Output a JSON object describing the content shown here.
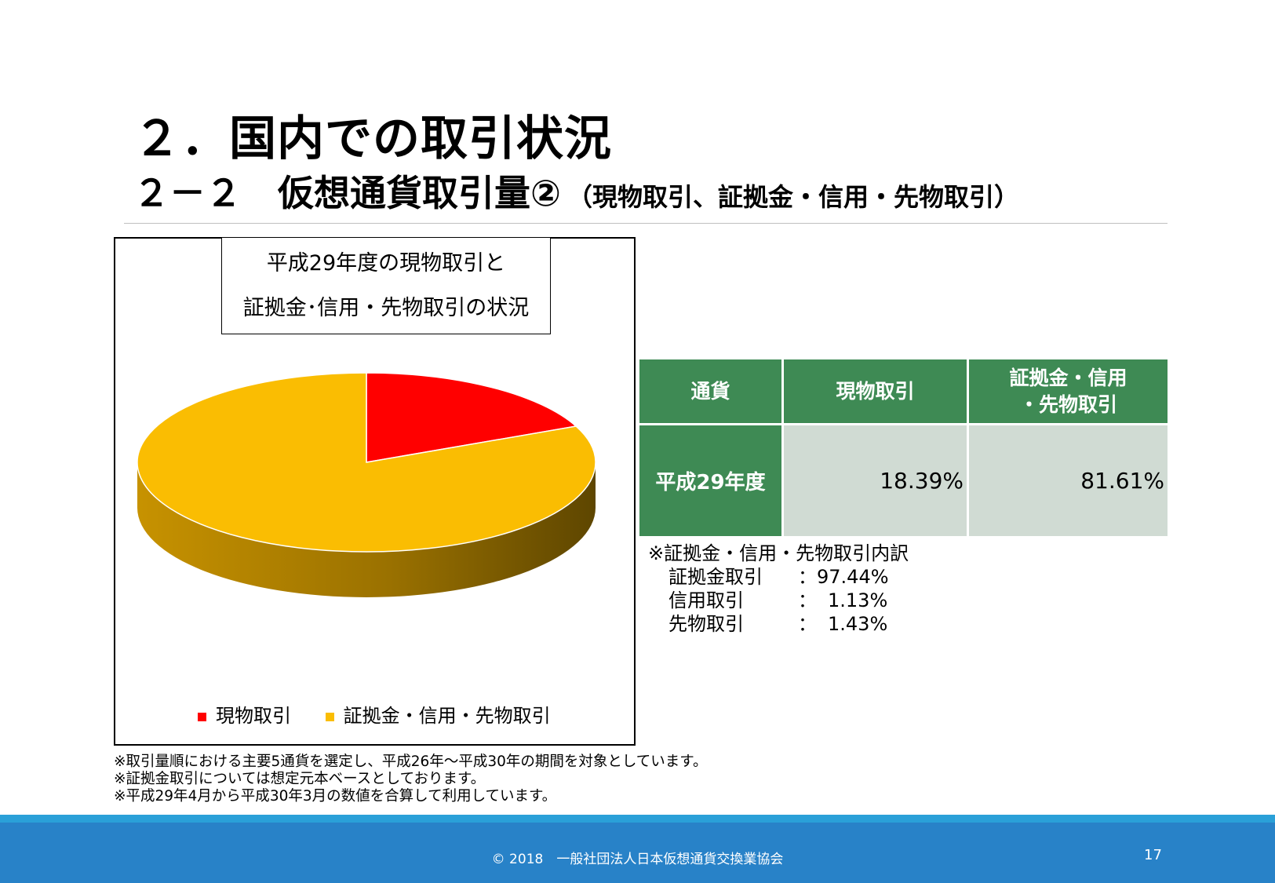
{
  "header": {
    "title_main": "２．国内での取引状況",
    "title_section": "２－２　仮想通貨取引量②",
    "title_sub": "（現物取引、証拠金・信用・先物取引）"
  },
  "chart_title": {
    "line1": "平成29年度の現物取引と",
    "line2": "証拠金･信用・先物取引の状況"
  },
  "chart_data": {
    "type": "pie",
    "style": "3d",
    "title": "平成29年度の現物取引と 証拠金･信用・先物取引の状況",
    "slices": [
      {
        "label": "現物取引",
        "value": 18.39,
        "color": "#ff0000",
        "side_color": "#a00000"
      },
      {
        "label": "証拠金・信用・先物取引",
        "value": 81.61,
        "color": "#fabd02",
        "side_color": "#7a5a00"
      }
    ],
    "start_angle": "12 o'clock",
    "direction": "clockwise",
    "legend_position": "bottom"
  },
  "table": {
    "headers": [
      "通貨",
      "現物取引",
      "証拠金・信用\n・先物取引"
    ],
    "header_line1": "証拠金・信用",
    "header_line2": "・先物取引",
    "rows": [
      {
        "label": "平成29年度",
        "spot": "18.39%",
        "margin": "81.61%"
      }
    ]
  },
  "breakdown": {
    "title": "※証拠金・信用・先物取引内訳",
    "items": [
      {
        "label": "証拠金取引",
        "sep": "：",
        "value": "97.44%"
      },
      {
        "label": "信用取引",
        "sep": "：",
        "value": "1.13%"
      },
      {
        "label": "先物取引",
        "sep": "：",
        "value": "1.43%"
      }
    ]
  },
  "footnotes": [
    "※取引量順における主要5通貨を選定し、平成26年～平成30年の期間を対象としています。",
    "※証拠金取引については想定元本ベースとしております。",
    "※平成29年4月から平成30年3月の数値を合算して利用しています。"
  ],
  "footer": {
    "copyright": "© 2018　一般社団法人日本仮想通貨交換業協会",
    "page_number": "17"
  },
  "colors": {
    "table_header": "#3e8a54",
    "table_cell": "#d0dbd3",
    "footer_bg": "#2882c8",
    "footer_strip": "#2aa0d8"
  }
}
